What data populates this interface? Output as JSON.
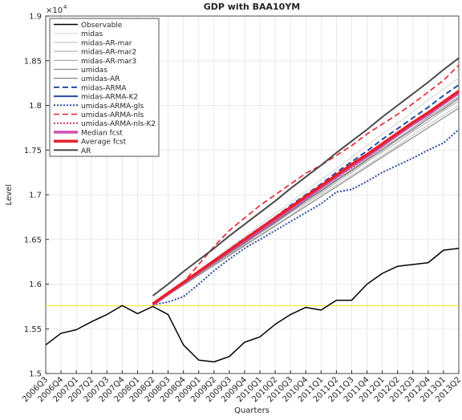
{
  "chart_data": {
    "type": "line",
    "title": "GDP with BAA10YM",
    "xlabel": "Quarters",
    "ylabel": "Level",
    "y_multiplier": "×10",
    "y_exponent": "4",
    "categories": [
      "2006Q3",
      "2006Q4",
      "2007Q1",
      "2007Q2",
      "2007Q3",
      "2007Q4",
      "2008Q1",
      "2008Q2",
      "2008Q3",
      "2008Q4",
      "2009Q1",
      "2009Q2",
      "2009Q3",
      "2009Q4",
      "2010Q1",
      "2010Q2",
      "2010Q3",
      "2010Q4",
      "2011Q1",
      "2011Q2",
      "2011Q3",
      "2011Q4",
      "2012Q1",
      "2012Q2",
      "2012Q3",
      "2012Q4",
      "2013Q1",
      "2013Q2"
    ],
    "ylim": [
      1.5,
      1.9
    ],
    "yticks": [
      1.5,
      1.55,
      1.6,
      1.65,
      1.7,
      1.75,
      1.8,
      1.85,
      1.9
    ],
    "grid": true,
    "legend": "upper-left",
    "hlines": [
      {
        "value": 1.576,
        "color": "#e8e800"
      }
    ],
    "series": [
      {
        "name": "Observable",
        "color": "#000000",
        "width": 1.5,
        "dash": "",
        "values": [
          1.532,
          1.545,
          1.549,
          1.558,
          1.566,
          1.576,
          1.567,
          1.575,
          1.566,
          1.532,
          1.515,
          1.513,
          1.519,
          1.535,
          1.541,
          1.555,
          1.566,
          1.574,
          1.571,
          1.582,
          1.582,
          1.6,
          1.612,
          1.62,
          1.622,
          1.624,
          1.638,
          1.64
        ]
      },
      {
        "name": "midas",
        "color": "#d9d9d9",
        "width": 1.2,
        "dash": "",
        "values": [
          null,
          null,
          null,
          null,
          null,
          null,
          null,
          1.577,
          1.59,
          1.602,
          1.615,
          1.628,
          1.641,
          1.653,
          1.666,
          1.679,
          1.691,
          1.704,
          1.717,
          1.729,
          1.742,
          1.755,
          1.768,
          1.78,
          1.793,
          1.806,
          1.818,
          1.831
        ]
      },
      {
        "name": "midas-AR-mar",
        "color": "#c8c8c8",
        "width": 1.2,
        "dash": "",
        "values": [
          null,
          null,
          null,
          null,
          null,
          null,
          null,
          1.577,
          1.588,
          1.599,
          1.61,
          1.622,
          1.633,
          1.644,
          1.655,
          1.666,
          1.677,
          1.689,
          1.7,
          1.711,
          1.722,
          1.733,
          1.744,
          1.755,
          1.767,
          1.778,
          1.789,
          1.8
        ]
      },
      {
        "name": "midas-AR-mar2",
        "color": "#b4b4b4",
        "width": 1.2,
        "dash": "",
        "values": [
          null,
          null,
          null,
          null,
          null,
          null,
          null,
          1.577,
          1.588,
          1.6,
          1.611,
          1.623,
          1.634,
          1.645,
          1.657,
          1.668,
          1.68,
          1.691,
          1.702,
          1.714,
          1.725,
          1.737,
          1.748,
          1.759,
          1.771,
          1.782,
          1.794,
          1.805
        ]
      },
      {
        "name": "midas-AR-mar3",
        "color": "#a0a0a0",
        "width": 1.2,
        "dash": "",
        "values": [
          null,
          null,
          null,
          null,
          null,
          null,
          null,
          1.577,
          1.589,
          1.6,
          1.612,
          1.624,
          1.636,
          1.647,
          1.659,
          1.67,
          1.682,
          1.694,
          1.705,
          1.717,
          1.728,
          1.74,
          1.752,
          1.763,
          1.775,
          1.787,
          1.798,
          1.81
        ]
      },
      {
        "name": "umidas",
        "color": "#8c8c8c",
        "width": 1.2,
        "dash": "",
        "values": [
          null,
          null,
          null,
          null,
          null,
          null,
          null,
          1.577,
          1.588,
          1.599,
          1.61,
          1.621,
          1.632,
          1.643,
          1.654,
          1.665,
          1.676,
          1.687,
          1.698,
          1.709,
          1.72,
          1.731,
          1.742,
          1.753,
          1.764,
          1.775,
          1.786,
          1.797
        ]
      },
      {
        "name": "umidas-AR",
        "color": "#787878",
        "width": 1.2,
        "dash": "",
        "values": [
          null,
          null,
          null,
          null,
          null,
          null,
          null,
          1.577,
          1.589,
          1.6,
          1.612,
          1.623,
          1.635,
          1.646,
          1.658,
          1.669,
          1.681,
          1.693,
          1.704,
          1.716,
          1.727,
          1.739,
          1.75,
          1.762,
          1.773,
          1.785,
          1.796,
          1.808
        ]
      },
      {
        "name": "midas-ARMA",
        "color": "#2a4aa0",
        "width": 2,
        "dash": "7 4",
        "values": [
          null,
          null,
          null,
          null,
          null,
          null,
          null,
          1.577,
          1.589,
          1.602,
          1.614,
          1.626,
          1.639,
          1.651,
          1.663,
          1.675,
          1.688,
          1.7,
          1.712,
          1.725,
          1.737,
          1.749,
          1.762,
          1.774,
          1.786,
          1.798,
          1.811,
          1.823
        ]
      },
      {
        "name": "midas-ARMA-K2",
        "color": "#2a4aa0",
        "width": 2,
        "dash": "",
        "values": [
          null,
          null,
          null,
          null,
          null,
          null,
          null,
          1.577,
          1.589,
          1.601,
          1.613,
          1.625,
          1.637,
          1.648,
          1.66,
          1.672,
          1.684,
          1.696,
          1.708,
          1.72,
          1.732,
          1.744,
          1.756,
          1.767,
          1.779,
          1.791,
          1.803,
          1.815
        ]
      },
      {
        "name": "umidas-ARMA-gls",
        "color": "#2a4aa0",
        "width": 2,
        "dash": "2 2",
        "values": [
          null,
          null,
          null,
          null,
          null,
          null,
          null,
          1.577,
          1.58,
          1.586,
          1.6,
          1.615,
          1.628,
          1.64,
          1.65,
          1.66,
          1.67,
          1.68,
          1.69,
          1.703,
          1.706,
          1.715,
          1.725,
          1.733,
          1.741,
          1.75,
          1.758,
          1.773
        ]
      },
      {
        "name": "umidas-ARMA-nls",
        "color": "#e8202a",
        "width": 1.6,
        "dash": "7 4",
        "values": [
          null,
          null,
          null,
          null,
          null,
          null,
          null,
          1.577,
          1.588,
          1.602,
          1.622,
          1.642,
          1.66,
          1.674,
          1.688,
          1.7,
          1.712,
          1.724,
          1.733,
          1.744,
          1.755,
          1.768,
          1.779,
          1.79,
          1.802,
          1.815,
          1.828,
          1.845
        ]
      },
      {
        "name": "umidas-ARMA-nls-K2",
        "color": "#c8102a",
        "width": 1.6,
        "dash": "2 2",
        "values": [
          null,
          null,
          null,
          null,
          null,
          null,
          null,
          1.577,
          1.589,
          1.601,
          1.612,
          1.624,
          1.636,
          1.648,
          1.66,
          1.671,
          1.683,
          1.695,
          1.707,
          1.719,
          1.73,
          1.742,
          1.754,
          1.766,
          1.778,
          1.789,
          1.801,
          1.813
        ]
      },
      {
        "name": "Median fcst",
        "color": "#d24fb4",
        "width": 3.5,
        "dash": "",
        "values": [
          null,
          null,
          null,
          null,
          null,
          null,
          null,
          1.577,
          1.589,
          1.601,
          1.613,
          1.625,
          1.637,
          1.648,
          1.66,
          1.672,
          1.684,
          1.696,
          1.708,
          1.72,
          1.732,
          1.743,
          1.755,
          1.767,
          1.779,
          1.79,
          1.802,
          1.814
        ]
      },
      {
        "name": "Average fcst",
        "color": "#e8202a",
        "width": 3.5,
        "dash": "",
        "values": [
          null,
          null,
          null,
          null,
          null,
          null,
          null,
          1.578,
          1.59,
          1.602,
          1.614,
          1.626,
          1.638,
          1.65,
          1.662,
          1.674,
          1.686,
          1.698,
          1.71,
          1.722,
          1.734,
          1.745,
          1.757,
          1.769,
          1.781,
          1.792,
          1.804,
          1.816
        ]
      },
      {
        "name": "AR",
        "color": "#4a4a4a",
        "width": 2,
        "dash": "",
        "values": [
          null,
          null,
          null,
          null,
          null,
          null,
          null,
          1.587,
          1.6,
          1.614,
          1.627,
          1.64,
          1.654,
          1.667,
          1.68,
          1.693,
          1.707,
          1.72,
          1.733,
          1.747,
          1.76,
          1.773,
          1.787,
          1.8,
          1.813,
          1.826,
          1.84,
          1.853
        ]
      }
    ]
  }
}
